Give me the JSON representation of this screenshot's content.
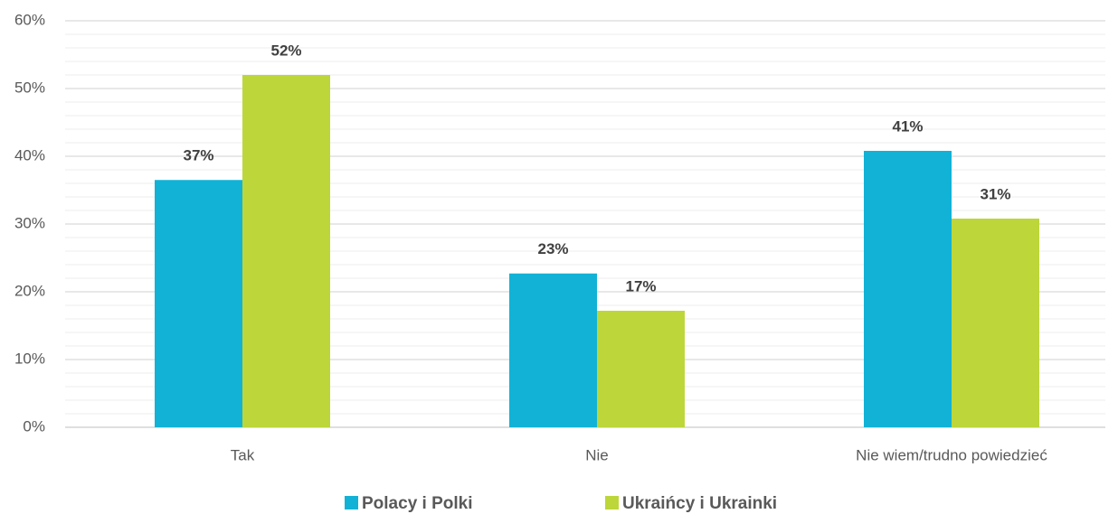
{
  "chart_data": {
    "type": "bar",
    "categories": [
      "Tak",
      "Nie",
      "Nie wiem/trudno powiedzieć"
    ],
    "series": [
      {
        "name": "Polacy i Polki",
        "color": "#12b2d6",
        "values": [
          36.5,
          22.7,
          40.8
        ],
        "value_labels": [
          "37%",
          "23%",
          "41%"
        ]
      },
      {
        "name": "Ukraińcy i Ukrainki",
        "color": "#bdd63a",
        "values": [
          52,
          17.2,
          30.8
        ],
        "value_labels": [
          "52%",
          "17%",
          "31%"
        ]
      }
    ],
    "ylim": [
      0,
      60
    ],
    "yticks": [
      {
        "value": 0,
        "label": "0%"
      },
      {
        "value": 10,
        "label": "10%"
      },
      {
        "value": 20,
        "label": "20%"
      },
      {
        "value": 30,
        "label": "30%"
      },
      {
        "value": 40,
        "label": "40%"
      },
      {
        "value": 50,
        "label": "50%"
      },
      {
        "value": 60,
        "label": "60%"
      }
    ],
    "minor_grid_step": 2,
    "grid": true,
    "legend": "bottom"
  }
}
